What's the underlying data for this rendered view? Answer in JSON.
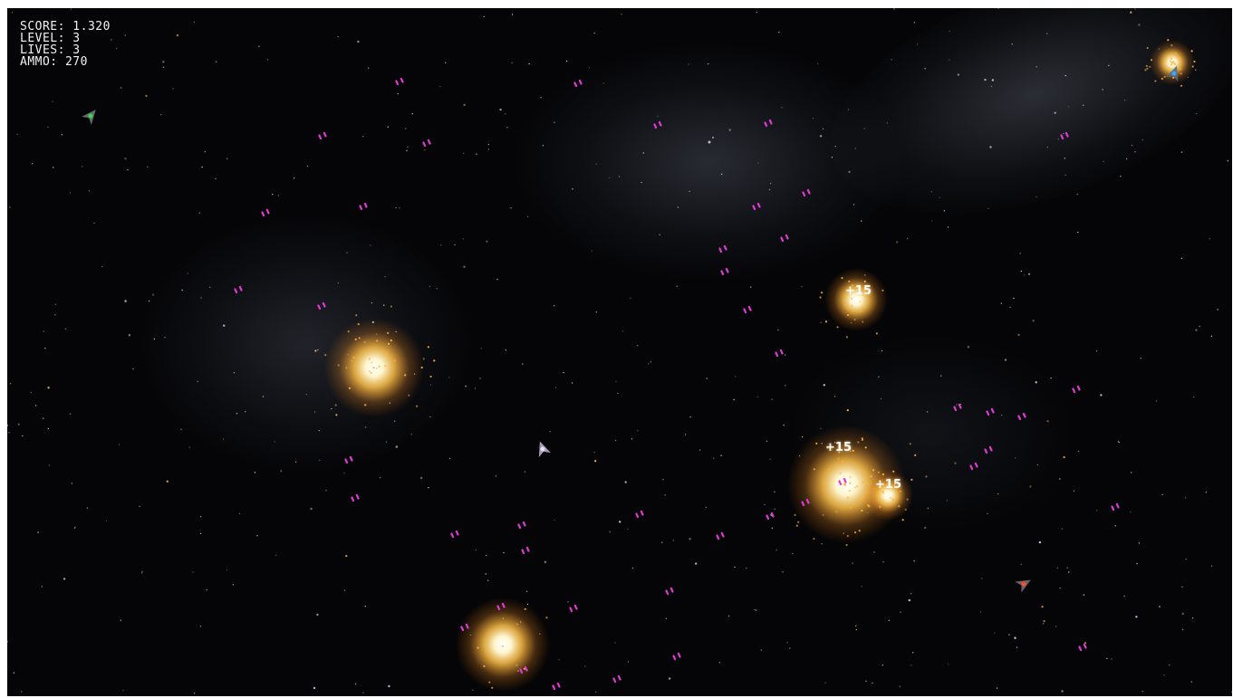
{
  "hud": {
    "score": "SCORE: 1.320",
    "level": "LEVEL: 3",
    "lives": "LIVES: 3",
    "ammo": "AMMO: 270"
  },
  "popups": [
    "+15",
    "+15",
    "+15"
  ],
  "colors": {
    "space": "#050507",
    "bullet": "#e23ad6",
    "explosion_core": "#fff6d0",
    "explosion_glow": "#ff9a2a",
    "player_ship": "#b9a8c8",
    "enemy_green": "#3bd35a",
    "enemy_blue": "#3aa6ff",
    "enemy_red": "#ff4a3a"
  },
  "icons": [
    "player-ship-icon",
    "enemy-ship-icon"
  ]
}
